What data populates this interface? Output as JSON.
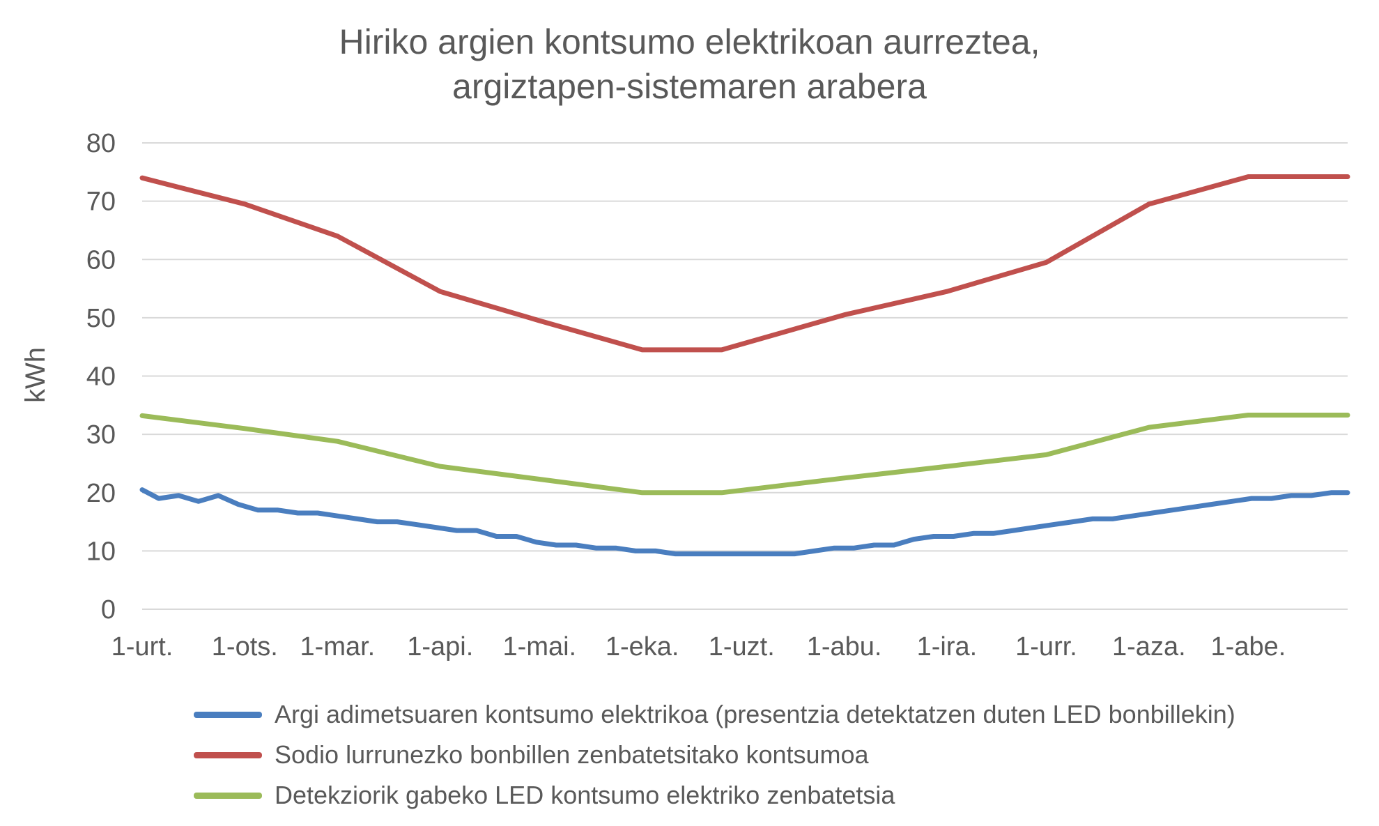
{
  "chart_data": {
    "type": "line",
    "title_lines": [
      "Hiriko argien kontsumo elektrikoan aurreztea,",
      "argiztapen-sistemaren arabera"
    ],
    "xlabel": "",
    "ylabel": "kWh",
    "ylim": [
      0,
      80
    ],
    "yticks": [
      "0",
      "10",
      "20",
      "30",
      "40",
      "50",
      "60",
      "70",
      "80"
    ],
    "x_range_days": [
      1,
      365
    ],
    "xtick_days": [
      1,
      32,
      60,
      91,
      121,
      152,
      182,
      213,
      244,
      274,
      305,
      335
    ],
    "categories": [
      "1-urt.",
      "1-ots.",
      "1-mar.",
      "1-api.",
      "1-mai.",
      "1-eka.",
      "1-uzt.",
      "1-abu.",
      "1-ira.",
      "1-urr.",
      "1-aza.",
      "1-abe."
    ],
    "grid": "horizontal",
    "legend_position": "bottom",
    "series": [
      {
        "name": "Argi adimetsuaren kontsumo elektrikoa (presentzia detektatzen duten LED bonbillekin)",
        "color": "#4a7ebf",
        "x": [
          1,
          6,
          12,
          18,
          24,
          30,
          36,
          42,
          48,
          54,
          60,
          66,
          72,
          78,
          84,
          90,
          96,
          102,
          108,
          114,
          120,
          126,
          132,
          138,
          144,
          150,
          156,
          162,
          168,
          174,
          180,
          186,
          192,
          198,
          204,
          210,
          216,
          222,
          228,
          234,
          240,
          246,
          252,
          258,
          264,
          270,
          276,
          282,
          288,
          294,
          300,
          306,
          312,
          318,
          324,
          330,
          336,
          342,
          348,
          354,
          360,
          365
        ],
        "y": [
          20.5,
          19.0,
          19.5,
          18.5,
          19.5,
          18.0,
          17.0,
          17.0,
          16.5,
          16.5,
          16.0,
          15.5,
          15.0,
          15.0,
          14.5,
          14.0,
          13.5,
          13.5,
          12.5,
          12.5,
          11.5,
          11.0,
          11.0,
          10.5,
          10.5,
          10.0,
          10.0,
          9.5,
          9.5,
          9.5,
          9.5,
          9.5,
          9.5,
          9.5,
          10.0,
          10.5,
          10.5,
          11.0,
          11.0,
          12.0,
          12.5,
          12.5,
          13.0,
          13.0,
          13.5,
          14.0,
          14.5,
          15.0,
          15.5,
          15.5,
          16.0,
          16.5,
          17.0,
          17.5,
          18.0,
          18.5,
          19.0,
          19.0,
          19.5,
          19.5,
          20.0,
          20.0
        ]
      },
      {
        "name": "Sodio lurrunezko bonbillen zenbatetsitako kontsumoa",
        "color": "#c0504d",
        "x": [
          1,
          32,
          60,
          91,
          121,
          152,
          176,
          213,
          244,
          274,
          305,
          335,
          365
        ],
        "y": [
          74,
          69.5,
          64,
          54.5,
          49.5,
          44.5,
          44.5,
          50.5,
          54.5,
          59.5,
          69.5,
          74.2,
          74.2
        ]
      },
      {
        "name": "Detekziorik gabeko LED kontsumo elektriko zenbatetsia",
        "color": "#9bbb59",
        "x": [
          1,
          32,
          60,
          91,
          121,
          152,
          176,
          213,
          244,
          274,
          305,
          335,
          365
        ],
        "y": [
          33.2,
          31,
          28.8,
          24.5,
          22.3,
          20,
          20,
          22.5,
          24.5,
          26.5,
          31.2,
          33.3,
          33.3
        ]
      }
    ]
  }
}
